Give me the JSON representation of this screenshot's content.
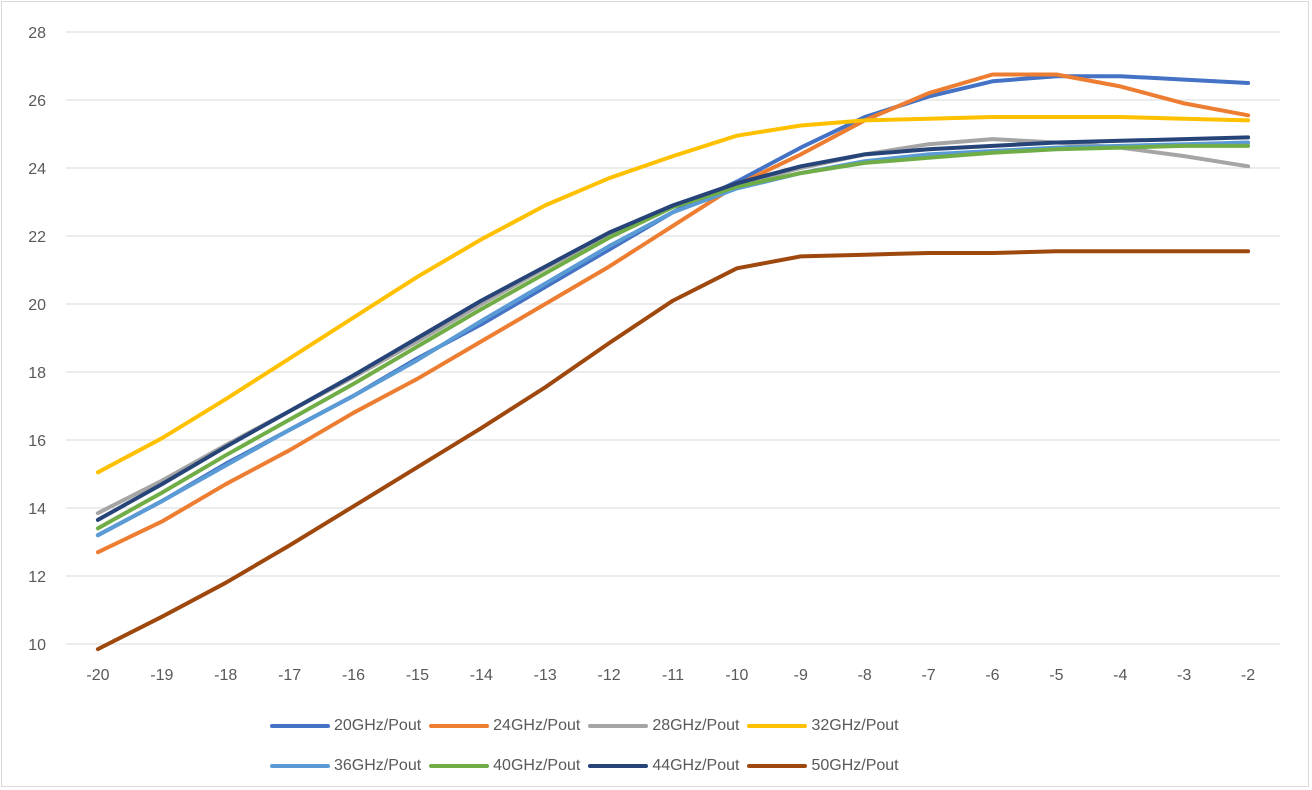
{
  "chart_data": {
    "type": "line",
    "title": "",
    "xlabel": "",
    "ylabel": "",
    "x": [
      -20,
      -19,
      -18,
      -17,
      -16,
      -15,
      -14,
      -13,
      -12,
      -11,
      -10,
      -9,
      -8,
      -7,
      -6,
      -5,
      -4,
      -3,
      -2
    ],
    "x_tick_labels": [
      "-20",
      "-19",
      "-18",
      "-17",
      "-16",
      "-15",
      "-14",
      "-13",
      "-12",
      "-11",
      "-10",
      "-9",
      "-8",
      "-7",
      "-6",
      "-5",
      "-4",
      "-3",
      "-2"
    ],
    "ylim": [
      10,
      28
    ],
    "y_ticks": [
      10,
      12,
      14,
      16,
      18,
      20,
      22,
      24,
      26,
      28
    ],
    "y_tick_labels": [
      "10",
      "12",
      "14",
      "16",
      "18",
      "20",
      "22",
      "24",
      "26",
      "28"
    ],
    "grid": "horizontal",
    "legend_position": "bottom",
    "series": [
      {
        "name": "20GHz/Pout",
        "color": "#4472c4",
        "values": [
          13.2,
          14.2,
          15.3,
          16.3,
          17.3,
          18.4,
          19.4,
          20.5,
          21.6,
          22.7,
          23.6,
          24.6,
          25.5,
          26.1,
          26.55,
          26.7,
          26.7,
          26.6,
          26.5
        ]
      },
      {
        "name": "24GHz/Pout",
        "color": "#ed7d31",
        "values": [
          12.7,
          13.6,
          14.7,
          15.7,
          16.8,
          17.8,
          18.9,
          20.0,
          21.1,
          22.3,
          23.5,
          24.4,
          25.4,
          26.2,
          26.75,
          26.75,
          26.4,
          25.9,
          25.55
        ]
      },
      {
        "name": "28GHz/Pout",
        "color": "#a5a5a5",
        "values": [
          13.85,
          14.8,
          15.85,
          16.85,
          17.85,
          18.9,
          20.0,
          21.05,
          22.05,
          22.9,
          23.5,
          24.0,
          24.4,
          24.7,
          24.85,
          24.75,
          24.6,
          24.35,
          24.05
        ]
      },
      {
        "name": "32GHz/Pout",
        "color": "#ffc000",
        "values": [
          15.05,
          16.05,
          17.2,
          18.4,
          19.6,
          20.8,
          21.9,
          22.9,
          23.7,
          24.35,
          24.95,
          25.25,
          25.4,
          25.45,
          25.5,
          25.5,
          25.5,
          25.45,
          25.4
        ]
      },
      {
        "name": "36GHz/Pout",
        "color": "#5b9bd5",
        "values": [
          13.2,
          14.2,
          15.25,
          16.3,
          17.3,
          18.35,
          19.5,
          20.6,
          21.7,
          22.7,
          23.4,
          23.85,
          24.2,
          24.4,
          24.5,
          24.6,
          24.65,
          24.7,
          24.75
        ]
      },
      {
        "name": "40GHz/Pout",
        "color": "#70ad47",
        "values": [
          13.4,
          14.45,
          15.55,
          16.6,
          17.65,
          18.75,
          19.85,
          20.9,
          21.95,
          22.85,
          23.45,
          23.85,
          24.15,
          24.3,
          24.45,
          24.55,
          24.6,
          24.65,
          24.65
        ]
      },
      {
        "name": "44GHz/Pout",
        "color": "#264478",
        "values": [
          13.65,
          14.7,
          15.8,
          16.85,
          17.9,
          19.0,
          20.1,
          21.1,
          22.1,
          22.9,
          23.55,
          24.05,
          24.4,
          24.55,
          24.65,
          24.75,
          24.8,
          24.85,
          24.9
        ]
      },
      {
        "name": "50GHz/Pout",
        "color": "#9e480e",
        "values": [
          9.85,
          10.8,
          11.8,
          12.9,
          14.05,
          15.2,
          16.35,
          17.55,
          18.85,
          20.1,
          21.05,
          21.4,
          21.45,
          21.5,
          21.5,
          21.55,
          21.55,
          21.55,
          21.55
        ]
      }
    ]
  }
}
